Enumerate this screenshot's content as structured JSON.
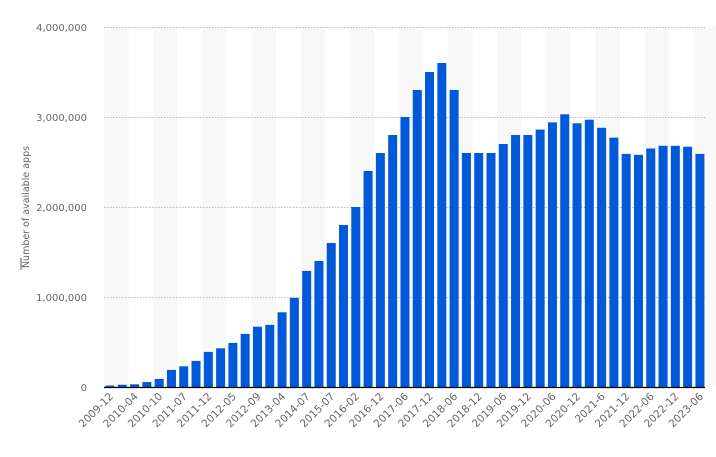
{
  "chart_data": {
    "type": "bar",
    "title": "",
    "xlabel": "",
    "ylabel": "Number of available apps",
    "ylim": [
      0,
      4000000
    ],
    "yticks": [
      0,
      1000000,
      2000000,
      3000000,
      4000000
    ],
    "ytick_labels": [
      "0",
      "1,000,000",
      "2,000,000",
      "3,000,000",
      "4,000,000"
    ],
    "grid": "horizontal dotted",
    "bar_color": "#0059d9",
    "categories": [
      "2009-12",
      "",
      "2010-04",
      "",
      "2010-10",
      "",
      "2011-07",
      "",
      "2011-12",
      "",
      "2012-05",
      "",
      "2012-09",
      "",
      "2013-04",
      "",
      "2014-07",
      "",
      "2015-07",
      "",
      "2016-02",
      "",
      "2016-12",
      "",
      "2017-06",
      "",
      "2017-12",
      "",
      "2018-06",
      "",
      "2018-12",
      "",
      "2019-06",
      "",
      "2019-12",
      "",
      "2020-06",
      "",
      "2020-12",
      "",
      "2021-6",
      "",
      "2021-12",
      "",
      "2022-06",
      "",
      "2022-12",
      "",
      "2023-06"
    ],
    "values": [
      16000,
      25000,
      30000,
      55000,
      90000,
      190000,
      230000,
      290000,
      390000,
      430000,
      490000,
      590000,
      670000,
      690000,
      830000,
      990000,
      1290000,
      1400000,
      1600000,
      1800000,
      2000000,
      2400000,
      2600000,
      2800000,
      3000000,
      3300000,
      3500000,
      3600000,
      3300000,
      2600000,
      2600000,
      2600000,
      2700000,
      2800000,
      2800000,
      2860000,
      2940000,
      3030000,
      2930000,
      2970000,
      2880000,
      2770000,
      2590000,
      2580000,
      2650000,
      2680000,
      2680000,
      2670000,
      2590000
    ]
  }
}
